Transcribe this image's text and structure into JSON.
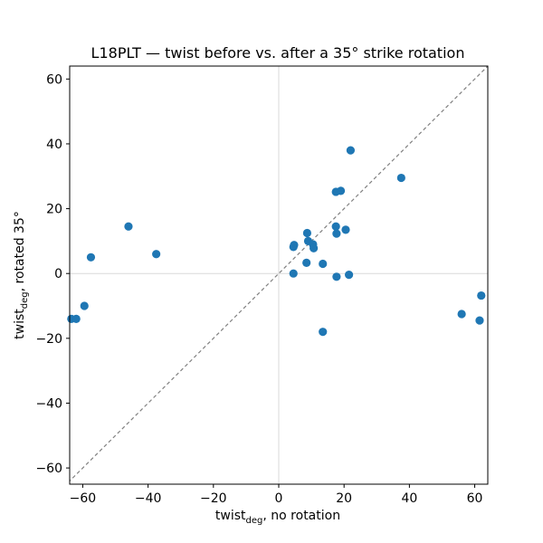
{
  "chart_data": {
    "type": "scatter",
    "title": "L18PLT — twist before vs. after a 35° strike rotation",
    "xlabel": {
      "main": "twist",
      "sub": "deg",
      "rest": ", no rotation"
    },
    "ylabel": {
      "main": "twist",
      "sub": "deg",
      "rest": ", rotated 35°"
    },
    "xlim": [
      -64,
      64
    ],
    "ylim": [
      -65,
      64
    ],
    "xticks": [
      -60,
      -40,
      -20,
      0,
      20,
      40,
      60
    ],
    "yticks": [
      -60,
      -40,
      -20,
      0,
      20,
      40,
      60
    ],
    "tick_labels": [
      "−60",
      "−40",
      "−20",
      "0",
      "20",
      "40",
      "60"
    ],
    "reference_lines": {
      "x_zero": true,
      "y_zero": true,
      "diagonal": "y = x (dashed)"
    },
    "grid": false,
    "colors": {
      "points": "#1f77b4",
      "diagonal": "#808080",
      "zero_lines": "#d9d9d9"
    },
    "points": [
      {
        "x": -63.5,
        "y": -14.0
      },
      {
        "x": -62.0,
        "y": -14.0
      },
      {
        "x": -59.5,
        "y": -10.0
      },
      {
        "x": -57.5,
        "y": 5.0
      },
      {
        "x": -46.0,
        "y": 14.5
      },
      {
        "x": -37.5,
        "y": 6.0
      },
      {
        "x": 4.5,
        "y": 0.0
      },
      {
        "x": 4.5,
        "y": 8.2
      },
      {
        "x": 4.7,
        "y": 8.8
      },
      {
        "x": 8.5,
        "y": 3.3
      },
      {
        "x": 8.7,
        "y": 12.5
      },
      {
        "x": 9.0,
        "y": 10.0
      },
      {
        "x": 10.5,
        "y": 9.0
      },
      {
        "x": 10.7,
        "y": 7.8
      },
      {
        "x": 13.5,
        "y": 3.0
      },
      {
        "x": 13.5,
        "y": -18.0
      },
      {
        "x": 17.5,
        "y": 25.2
      },
      {
        "x": 17.5,
        "y": 14.5
      },
      {
        "x": 17.7,
        "y": 12.3
      },
      {
        "x": 17.7,
        "y": -1.0
      },
      {
        "x": 19.0,
        "y": 25.5
      },
      {
        "x": 20.5,
        "y": 13.5
      },
      {
        "x": 21.5,
        "y": -0.4
      },
      {
        "x": 22.0,
        "y": 38.0
      },
      {
        "x": 37.5,
        "y": 29.5
      },
      {
        "x": 56.0,
        "y": -12.5
      },
      {
        "x": 61.5,
        "y": -14.5
      },
      {
        "x": 62.0,
        "y": -6.8
      }
    ]
  }
}
